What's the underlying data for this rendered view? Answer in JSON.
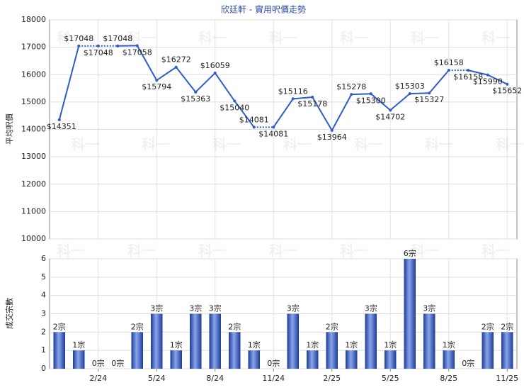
{
  "chart_data": [
    {
      "type": "line",
      "title": "欣廷軒 - 實用呎價走勢",
      "y_label": "平均呎價",
      "color": "#2f5ccc",
      "values": [
        14351,
        17048,
        17048,
        17048,
        17058,
        15794,
        16272,
        15363,
        16059,
        15040,
        14081,
        14081,
        15116,
        15178,
        13964,
        15278,
        15300,
        14702,
        15303,
        15327,
        16158,
        16158,
        15990,
        15652
      ],
      "value_labels": [
        "$14351",
        "$17048",
        "$17048",
        "$17048",
        "$17058",
        "$15794",
        "$16272",
        "$15363",
        "$16059",
        "$15040",
        "$14081",
        "$14081",
        "$15116",
        "$15178",
        "$13964",
        "$15278",
        "$15300",
        "$14702",
        "$15303",
        "$15327",
        "$16158",
        "$16158",
        "$15990",
        "$15652"
      ],
      "ylim": [
        10000,
        18000
      ],
      "yticks": [
        10000,
        11000,
        12000,
        13000,
        14000,
        15000,
        16000,
        17000,
        18000
      ],
      "grid": true,
      "watermark": "科一"
    },
    {
      "type": "bar",
      "y_label": "成交宗數",
      "categories": [
        null,
        null,
        "2/24",
        null,
        null,
        "5/24",
        null,
        null,
        "8/24",
        null,
        null,
        "11/24",
        null,
        null,
        "2/25",
        null,
        null,
        "5/25",
        null,
        null,
        "8/25",
        null,
        null,
        "11/25"
      ],
      "values": [
        2,
        1,
        0,
        0,
        2,
        3,
        1,
        3,
        3,
        2,
        1,
        0,
        3,
        1,
        2,
        1,
        3,
        1,
        6,
        3,
        1,
        0,
        2,
        2
      ],
      "value_labels": [
        "2宗",
        "1宗",
        "0宗",
        "0宗",
        "2宗",
        "3宗",
        "1宗",
        "3宗",
        "3宗",
        "2宗",
        "1宗",
        "0宗",
        "3宗",
        "1宗",
        "2宗",
        "1宗",
        "3宗",
        "1宗",
        "6宗",
        "3宗",
        "1宗",
        "0宗",
        "2宗",
        "2宗"
      ],
      "ylim": [
        0,
        6
      ],
      "yticks": [
        0,
        1,
        2,
        3,
        4,
        5,
        6
      ],
      "grid": true,
      "color": "#2f55c0"
    }
  ]
}
